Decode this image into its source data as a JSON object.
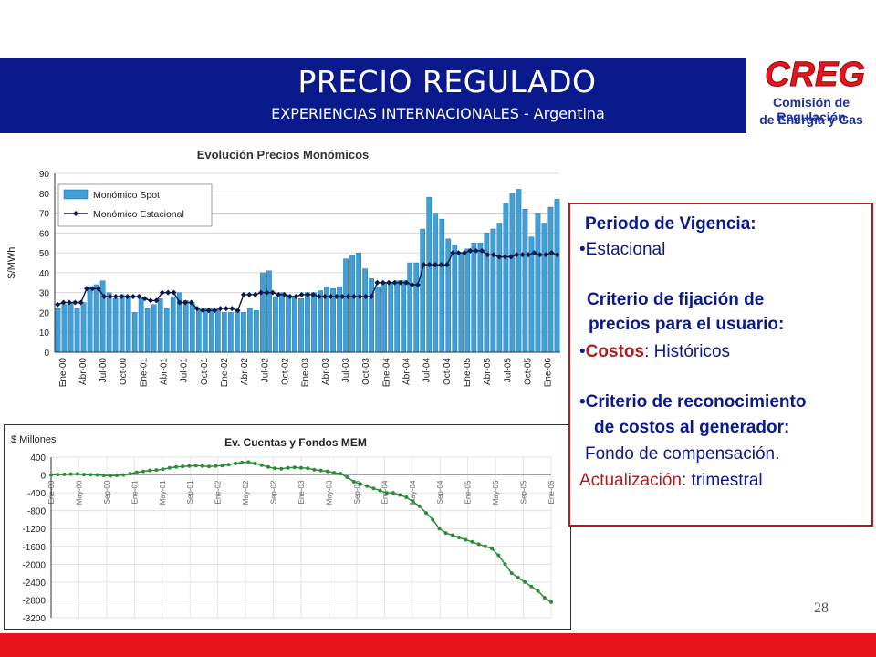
{
  "header": {
    "title": "PRECIO REGULADO",
    "subtitle": "EXPERIENCIAS INTERNACIONALES - Argentina"
  },
  "logo": {
    "brand": "CREG",
    "line1": "Comisión de Regulación",
    "line2": "de Energía y Gas",
    "colors": {
      "primary": "#e8141c",
      "secondary": "#1e2fa0"
    }
  },
  "info_box": {
    "vigencia_heading": "Periodo de Vigencia:",
    "vigencia_value": "Estacional",
    "criterio_heading_1": "Criterio de fijación de",
    "criterio_heading_2": "precios para el usuario:",
    "criterio_label": "Costos",
    "criterio_value": ": Históricos",
    "reconocimiento_heading_1": "Criterio de reconocimiento",
    "reconocimiento_heading_2": "de costos al generador:",
    "reconocimiento_value": "Fondo de compensación.",
    "actualizacion_label": "Actualización",
    "actualizacion_value": ": trimestral"
  },
  "page_number": "28",
  "colors": {
    "header_bg": "#0a1a8c",
    "footer_bg": "#e8141c",
    "box_border": "#b01c1c"
  },
  "chart_data": [
    {
      "type": "bar",
      "title": "Evolución Precios Monómicos",
      "ylabel": "$/MWh",
      "ylim": [
        0,
        90
      ],
      "yticks": [
        0,
        10,
        20,
        30,
        40,
        50,
        60,
        70,
        80,
        90
      ],
      "xticklabels": [
        "Ene-00",
        "Abr-00",
        "Jul-00",
        "Oct-00",
        "Ene-01",
        "Abr-01",
        "Jul-01",
        "Oct-01",
        "Ene-02",
        "Abr-02",
        "Jul-02",
        "Oct-02",
        "Ene-03",
        "Abr-03",
        "Jul-03",
        "Oct-03",
        "Ene-04",
        "Abr-04",
        "Jul-04",
        "Oct-04",
        "Ene-05",
        "Abr-05",
        "Jul-05",
        "Oct-05",
        "Ene-06"
      ],
      "legend_position": "top-left",
      "grid": true,
      "series": [
        {
          "name": "Monómico Spot",
          "kind": "bar",
          "color": "#3f9fd6",
          "values": [
            22,
            24,
            25,
            22,
            25,
            33,
            34,
            36,
            30,
            27,
            29,
            28,
            20,
            27,
            22,
            24,
            27,
            22,
            28,
            30,
            26,
            25,
            21,
            22,
            22,
            21,
            20,
            20,
            21,
            20,
            22,
            21,
            40,
            41,
            28,
            30,
            29,
            28,
            27,
            30,
            30,
            31,
            33,
            32,
            33,
            47,
            49,
            50,
            42,
            37,
            33,
            35,
            35,
            36,
            36,
            45,
            45,
            62,
            78,
            70,
            67,
            57,
            54,
            50,
            52,
            55,
            55,
            60,
            62,
            65,
            75,
            80,
            82,
            72,
            58,
            70,
            65,
            73,
            77
          ]
        },
        {
          "name": "Monómico Estacional",
          "kind": "line",
          "color": "#0a1a4a",
          "values": [
            24,
            25,
            25,
            25,
            25,
            32,
            32,
            32,
            28,
            28,
            28,
            28,
            28,
            28,
            28,
            27,
            26,
            26,
            30,
            30,
            30,
            25,
            25,
            25,
            22,
            21,
            21,
            21,
            22,
            22,
            22,
            21,
            29,
            29,
            29,
            30,
            30,
            30,
            29,
            29,
            28,
            28,
            29,
            29,
            29,
            28,
            28,
            28,
            28,
            28,
            28,
            28,
            28,
            28,
            28,
            35,
            35,
            35,
            35,
            35,
            35,
            34,
            34,
            44,
            44,
            44,
            44,
            44,
            50,
            50,
            50,
            51,
            51,
            51,
            49,
            49,
            48,
            48,
            48,
            49,
            49,
            49,
            50,
            49,
            49,
            50,
            49
          ]
        }
      ]
    },
    {
      "type": "line",
      "title": "Ev. Cuentas y Fondos MEM",
      "ylabel": "$ Millones",
      "ylim": [
        -3200,
        400
      ],
      "yticks": [
        400,
        0,
        -400,
        -800,
        -1200,
        -1600,
        -2000,
        -2400,
        -2800,
        -3200
      ],
      "xticklabels": [
        "Ene-00",
        "May-00",
        "Sep-00",
        "Ene-01",
        "May-01",
        "Sep-01",
        "Ene-02",
        "May-02",
        "Sep-02",
        "Ene-03",
        "May-03",
        "Sep-03",
        "Ene-04",
        "May-04",
        "Sep-04",
        "Ene-05",
        "May-05",
        "Sep-05",
        "Ene-06"
      ],
      "grid": true,
      "series": [
        {
          "name": "",
          "color": "#2e8b3a",
          "values": [
            0,
            10,
            15,
            20,
            25,
            10,
            5,
            0,
            -10,
            -20,
            -10,
            0,
            30,
            60,
            80,
            100,
            110,
            130,
            160,
            180,
            190,
            200,
            210,
            200,
            190,
            200,
            210,
            230,
            260,
            280,
            290,
            260,
            220,
            180,
            150,
            140,
            160,
            170,
            160,
            150,
            120,
            100,
            80,
            50,
            30,
            -50,
            -150,
            -200,
            -250,
            -300,
            -350,
            -400,
            -400,
            -450,
            -500,
            -600,
            -700,
            -850,
            -1000,
            -1200,
            -1300,
            -1350,
            -1400,
            -1450,
            -1500,
            -1550,
            -1600,
            -1650,
            -1800,
            -2000,
            -2200,
            -2300,
            -2400,
            -2500,
            -2600,
            -2750,
            -2850
          ]
        }
      ]
    }
  ]
}
